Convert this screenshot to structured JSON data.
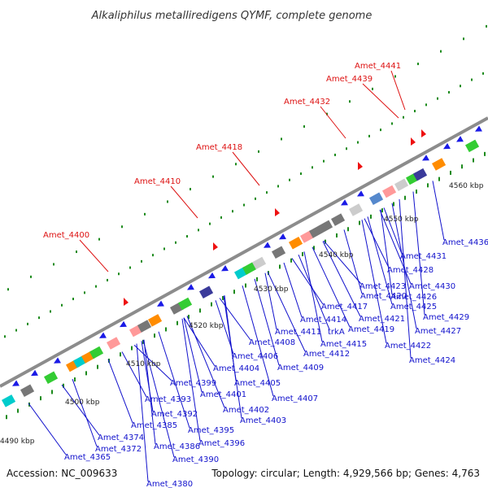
{
  "title": "Alkaliphilus metalliredigens QYMF, complete genome",
  "footer": {
    "accession": "Accession: NC_009633",
    "topology": "Topology: circular; Length: 4,929,566 bp; Genes: 4,763"
  },
  "ticks": [
    "4490 kbp",
    "4500 kbp",
    "4510 kbp",
    "4520 kbp",
    "4530 kbp",
    "4540 kbp",
    "4550 kbp",
    "4560 kbp"
  ],
  "colors": {
    "label_top": "#dd1111",
    "label_bottom": "#1111cc",
    "backbone": "#888888",
    "gene": "#1a1ae6",
    "gc": "#1c8a1c"
  },
  "labels_top": [
    "Amet_4441",
    "Amet_4439",
    "Amet_4432",
    "Amet_4418",
    "Amet_4410",
    "Amet_4400"
  ],
  "labels_bottom": [
    "Amet_4436",
    "Amet_4431",
    "Amet_4428",
    "Amet_4430",
    "Amet_4423",
    "Amet_4426",
    "Amet_4420",
    "Amet_4425",
    "Amet_4417",
    "Amet_4421",
    "Amet_4429",
    "Amet_4414",
    "Amet_4427",
    "trkA",
    "Amet_4419",
    "Amet_4411",
    "Amet_4415",
    "Amet_4422",
    "Amet_4408",
    "Amet_4412",
    "Amet_4424",
    "Amet_4406",
    "Amet_4409",
    "Amet_4404",
    "Amet_4399",
    "Amet_4405",
    "Amet_4401",
    "Amet_4393",
    "Amet_4407",
    "Amet_4402",
    "Amet_4392",
    "Amet_4403",
    "Amet_4385",
    "Amet_4395",
    "Amet_4374",
    "Amet_4386",
    "Amet_4396",
    "Amet_4372",
    "Amet_4390",
    "Amet_4365",
    "Amet_4380"
  ]
}
